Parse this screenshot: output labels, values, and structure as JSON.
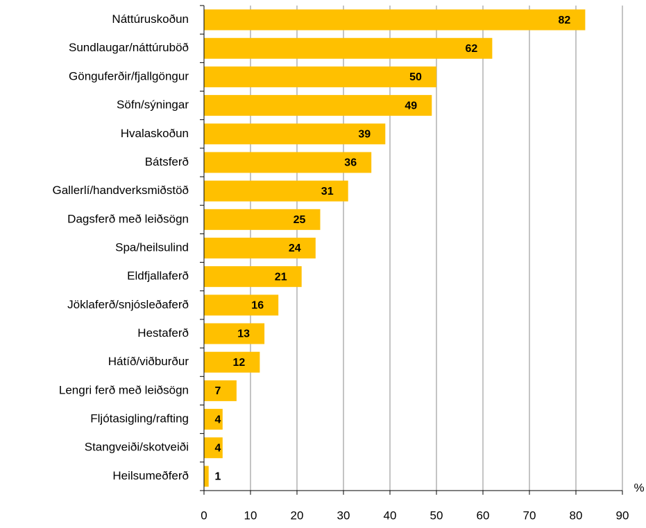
{
  "chart_data": {
    "type": "bar",
    "orientation": "horizontal",
    "categories": [
      "Náttúruskoðun",
      "Sundlaugar/náttúruböð",
      "Gönguferðir/fjallgöngur",
      "Söfn/sýningar",
      "Hvalaskoðun",
      "Bátsferð",
      "Gallerlí/handverksmiðstöð",
      "Dagsferð með leiðsögn",
      "Spa/heilsulind",
      "Eldfjallaferð",
      "Jöklaferð/snjósleðaferð",
      "Hestaferð",
      "Hátíð/viðburður",
      "Lengri ferð með leiðsögn",
      "Fljótasigling/rafting",
      "Stangveiði/skotveiði",
      "Heilsumeðferð"
    ],
    "values": [
      82,
      62,
      50,
      49,
      39,
      36,
      31,
      25,
      24,
      21,
      16,
      13,
      12,
      7,
      4,
      4,
      1
    ],
    "color": "#FFC000",
    "xlabel": "%",
    "xlim": [
      0,
      90
    ],
    "xticks": [
      0,
      10,
      20,
      30,
      40,
      50,
      60,
      70,
      80,
      90
    ],
    "grid": true
  }
}
